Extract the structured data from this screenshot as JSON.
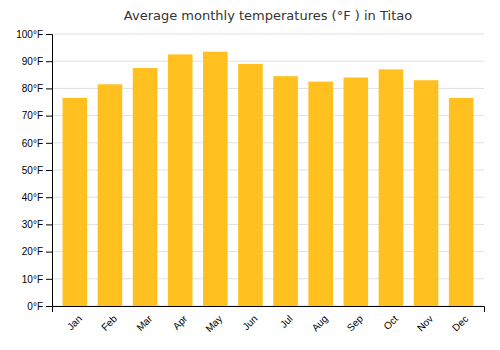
{
  "chart_data": {
    "type": "bar",
    "title": "Average monthly temperatures (°F ) in Titao",
    "categories": [
      "Jan",
      "Feb",
      "Mar",
      "Apr",
      "May",
      "Jun",
      "Jul",
      "Aug",
      "Sep",
      "Oct",
      "Nov",
      "Dec"
    ],
    "values": [
      76.5,
      81.5,
      87.5,
      92.5,
      93.5,
      89.0,
      84.5,
      82.5,
      84.0,
      87.0,
      83.0,
      76.5
    ],
    "color": "#FFC020",
    "ylim": [
      0,
      100
    ],
    "yticks": [
      {
        "value": 0,
        "label": "0°F"
      },
      {
        "value": 10,
        "label": "10°F"
      },
      {
        "value": 20,
        "label": "20°F"
      },
      {
        "value": 30,
        "label": "30°F"
      },
      {
        "value": 40,
        "label": "40°F"
      },
      {
        "value": 50,
        "label": "50°F"
      },
      {
        "value": 60,
        "label": "60°F"
      },
      {
        "value": 70,
        "label": "70°F"
      },
      {
        "value": 80,
        "label": "80°F"
      },
      {
        "value": 90,
        "label": "90°F"
      },
      {
        "value": 100,
        "label": "100°F"
      }
    ],
    "grid": true
  }
}
